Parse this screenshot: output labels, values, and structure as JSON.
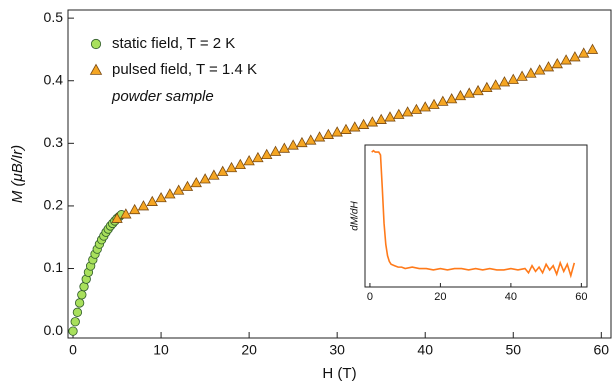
{
  "chart_data": [
    {
      "type": "scatter",
      "xlabel": "H (T)",
      "ylabel": "M (μB/Ir)",
      "xlim": [
        -0.57,
        61.1
      ],
      "ylim": [
        -0.011,
        0.513
      ],
      "xticks": [
        0,
        10,
        20,
        30,
        40,
        50,
        60
      ],
      "yticks": [
        {
          "value": 0,
          "label": "0.0"
        },
        0.1,
        0.2,
        0.3,
        0.4,
        0.5
      ],
      "annotation": "powder sample",
      "series": [
        {
          "name": "static field, T = 2 K",
          "color": "#a8e05c",
          "marker": "circle",
          "x": [
            0,
            0.25,
            0.5,
            0.75,
            1,
            1.25,
            1.5,
            1.75,
            2,
            2.25,
            2.5,
            2.75,
            3,
            3.25,
            3.5,
            3.75,
            4,
            4.25,
            4.5,
            4.75,
            5,
            5.25,
            5.5
          ],
          "values": [
            0.0,
            0.015,
            0.03,
            0.045,
            0.058,
            0.071,
            0.083,
            0.094,
            0.104,
            0.114,
            0.123,
            0.131,
            0.139,
            0.146,
            0.152,
            0.158,
            0.163,
            0.168,
            0.172,
            0.176,
            0.18,
            0.183,
            0.186
          ]
        },
        {
          "name": "pulsed field, T = 1.4 K",
          "color": "#f5a623",
          "marker": "triangle",
          "x": [
            5,
            6,
            7,
            8,
            9,
            10,
            11,
            12,
            13,
            14,
            15,
            16,
            17,
            18,
            19,
            20,
            21,
            22,
            23,
            24,
            25,
            26,
            27,
            28,
            29,
            30,
            31,
            32,
            33,
            34,
            35,
            36,
            37,
            38,
            39,
            40,
            41,
            42,
            43,
            44,
            45,
            46,
            47,
            48,
            49,
            50,
            51,
            52,
            53,
            54,
            55,
            56,
            57,
            58,
            59
          ],
          "values": [
            0.18,
            0.187,
            0.194,
            0.2,
            0.207,
            0.213,
            0.219,
            0.225,
            0.231,
            0.237,
            0.243,
            0.249,
            0.255,
            0.261,
            0.266,
            0.272,
            0.277,
            0.282,
            0.287,
            0.292,
            0.297,
            0.301,
            0.305,
            0.31,
            0.314,
            0.318,
            0.322,
            0.326,
            0.33,
            0.334,
            0.338,
            0.342,
            0.346,
            0.35,
            0.354,
            0.358,
            0.362,
            0.367,
            0.371,
            0.376,
            0.38,
            0.384,
            0.389,
            0.393,
            0.398,
            0.402,
            0.407,
            0.412,
            0.417,
            0.422,
            0.427,
            0.433,
            0.438,
            0.444,
            0.45
          ]
        }
      ]
    },
    {
      "type": "line",
      "ylabel": "dM/dH",
      "xlim": [
        -1.4,
        61.6
      ],
      "ylim": [
        0,
        1
      ],
      "xticks": [
        0,
        20,
        40,
        60
      ],
      "series": [
        {
          "color": "#ff7a1a",
          "x": [
            0.5,
            1,
            1.5,
            2,
            2.5,
            3,
            3.5,
            4,
            4.5,
            5,
            5.5,
            6,
            7,
            8,
            9,
            10,
            12,
            14,
            16,
            18,
            20,
            22,
            24,
            26,
            28,
            30,
            32,
            34,
            36,
            38,
            40,
            42,
            44,
            45,
            46,
            47,
            48,
            49,
            50,
            51,
            52,
            53,
            54,
            55,
            56,
            57,
            58
          ],
          "values": [
            0.95,
            0.96,
            0.95,
            0.95,
            0.95,
            0.93,
            0.7,
            0.45,
            0.3,
            0.22,
            0.18,
            0.16,
            0.15,
            0.14,
            0.14,
            0.13,
            0.14,
            0.13,
            0.13,
            0.12,
            0.13,
            0.12,
            0.13,
            0.13,
            0.12,
            0.13,
            0.12,
            0.13,
            0.12,
            0.12,
            0.13,
            0.12,
            0.13,
            0.1,
            0.15,
            0.11,
            0.14,
            0.1,
            0.16,
            0.12,
            0.15,
            0.09,
            0.17,
            0.11,
            0.16,
            0.08,
            0.17
          ]
        }
      ]
    }
  ]
}
